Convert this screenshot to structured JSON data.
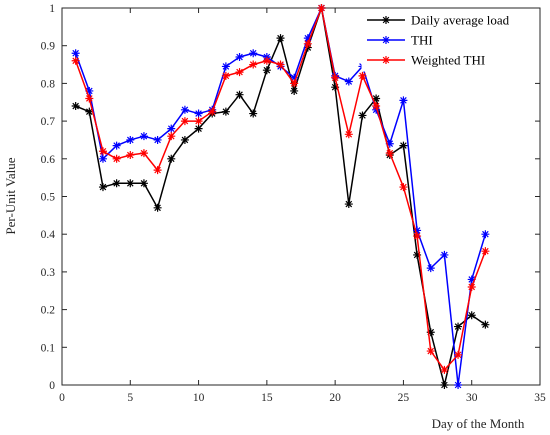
{
  "chart_data": {
    "type": "line",
    "title": "",
    "xlabel": "Day of the Month",
    "ylabel": "Per-Unit Value",
    "xlim": [
      0,
      35
    ],
    "ylim": [
      0,
      1
    ],
    "xticks": [
      0,
      5,
      10,
      15,
      20,
      25,
      30,
      35
    ],
    "yticks": [
      0,
      0.1,
      0.2,
      0.3,
      0.4,
      0.5,
      0.6,
      0.7,
      0.8,
      0.9,
      1
    ],
    "ytick_labels": [
      "0",
      "0.1",
      "0.2",
      "0.3",
      "0.4",
      "0.5",
      "0.6",
      "0.7",
      "0.8",
      "0.9",
      "1"
    ],
    "grid": false,
    "legend_position": "top-right",
    "x": [
      1,
      2,
      3,
      4,
      5,
      6,
      7,
      8,
      9,
      10,
      11,
      12,
      13,
      14,
      15,
      16,
      17,
      18,
      19,
      20,
      21,
      22,
      23,
      24,
      25,
      26,
      27,
      28,
      29,
      30,
      31
    ],
    "series": [
      {
        "name": "Daily average load",
        "color": "#000000",
        "marker": "asterisk",
        "values": [
          0.74,
          0.725,
          0.525,
          0.535,
          0.535,
          0.535,
          0.47,
          0.6,
          0.65,
          0.68,
          0.72,
          0.725,
          0.77,
          0.72,
          0.835,
          0.92,
          0.78,
          0.895,
          1.0,
          0.79,
          0.48,
          0.715,
          0.76,
          0.61,
          0.635,
          0.345,
          0.14,
          0.0,
          0.155,
          0.185,
          0.16
        ]
      },
      {
        "name": "THI",
        "color": "#0000ff",
        "marker": "asterisk",
        "values": [
          0.88,
          0.78,
          0.6,
          0.635,
          0.65,
          0.66,
          0.65,
          0.68,
          0.73,
          0.72,
          0.73,
          0.845,
          0.87,
          0.88,
          0.87,
          0.845,
          0.815,
          0.92,
          1.0,
          0.82,
          0.805,
          0.845,
          0.73,
          0.64,
          0.755,
          0.41,
          0.31,
          0.345,
          0.0,
          0.28,
          0.4
        ]
      },
      {
        "name": "Weighted THI",
        "color": "#ff0000",
        "marker": "asterisk",
        "values": [
          0.86,
          0.76,
          0.62,
          0.6,
          0.61,
          0.615,
          0.57,
          0.66,
          0.7,
          0.7,
          0.725,
          0.82,
          0.83,
          0.85,
          0.86,
          0.85,
          0.8,
          0.905,
          1.0,
          0.815,
          0.665,
          0.82,
          0.74,
          0.615,
          0.525,
          0.395,
          0.09,
          0.04,
          0.08,
          0.26,
          0.355
        ]
      }
    ]
  }
}
